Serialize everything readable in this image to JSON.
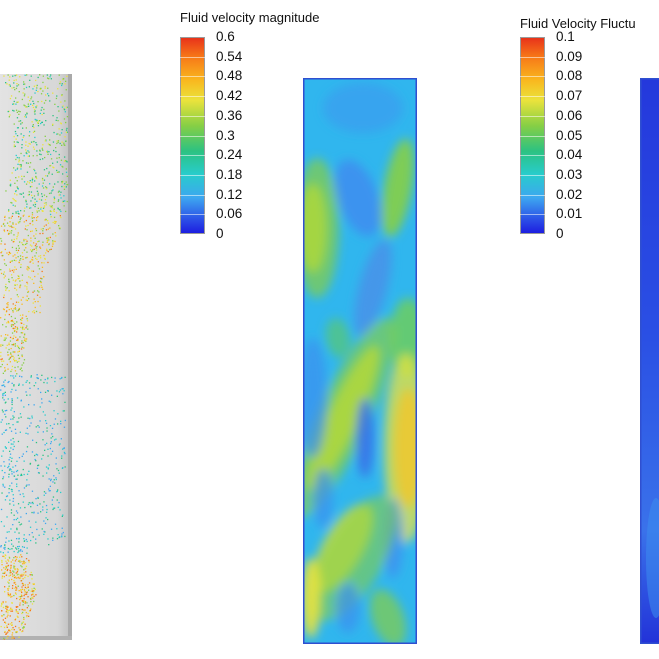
{
  "legends": {
    "velocity": {
      "title": "Fluid velocity magnitude",
      "ticks": [
        "0.6",
        "0.54",
        "0.48",
        "0.42",
        "0.36",
        "0.3",
        "0.24",
        "0.18",
        "0.12",
        "0.06",
        "0"
      ]
    },
    "fluctuation": {
      "title": "Fluid Velocity Fluctu",
      "ticks": [
        "0.1",
        "0.09",
        "0.08",
        "0.07",
        "0.06",
        "0.05",
        "0.04",
        "0.03",
        "0.02",
        "0.01",
        "0"
      ]
    }
  },
  "colors": {
    "colormap": [
      "#1d1ee0",
      "#2a49e6",
      "#3da6f0",
      "#28cccc",
      "#2cc282",
      "#86cf45",
      "#eae33c",
      "#f9b91f",
      "#f77a18",
      "#e8331a"
    ],
    "domain_background": "#d9d9d9",
    "field_base": "#30b6ee",
    "panel_border": "#2f4fd0"
  }
}
